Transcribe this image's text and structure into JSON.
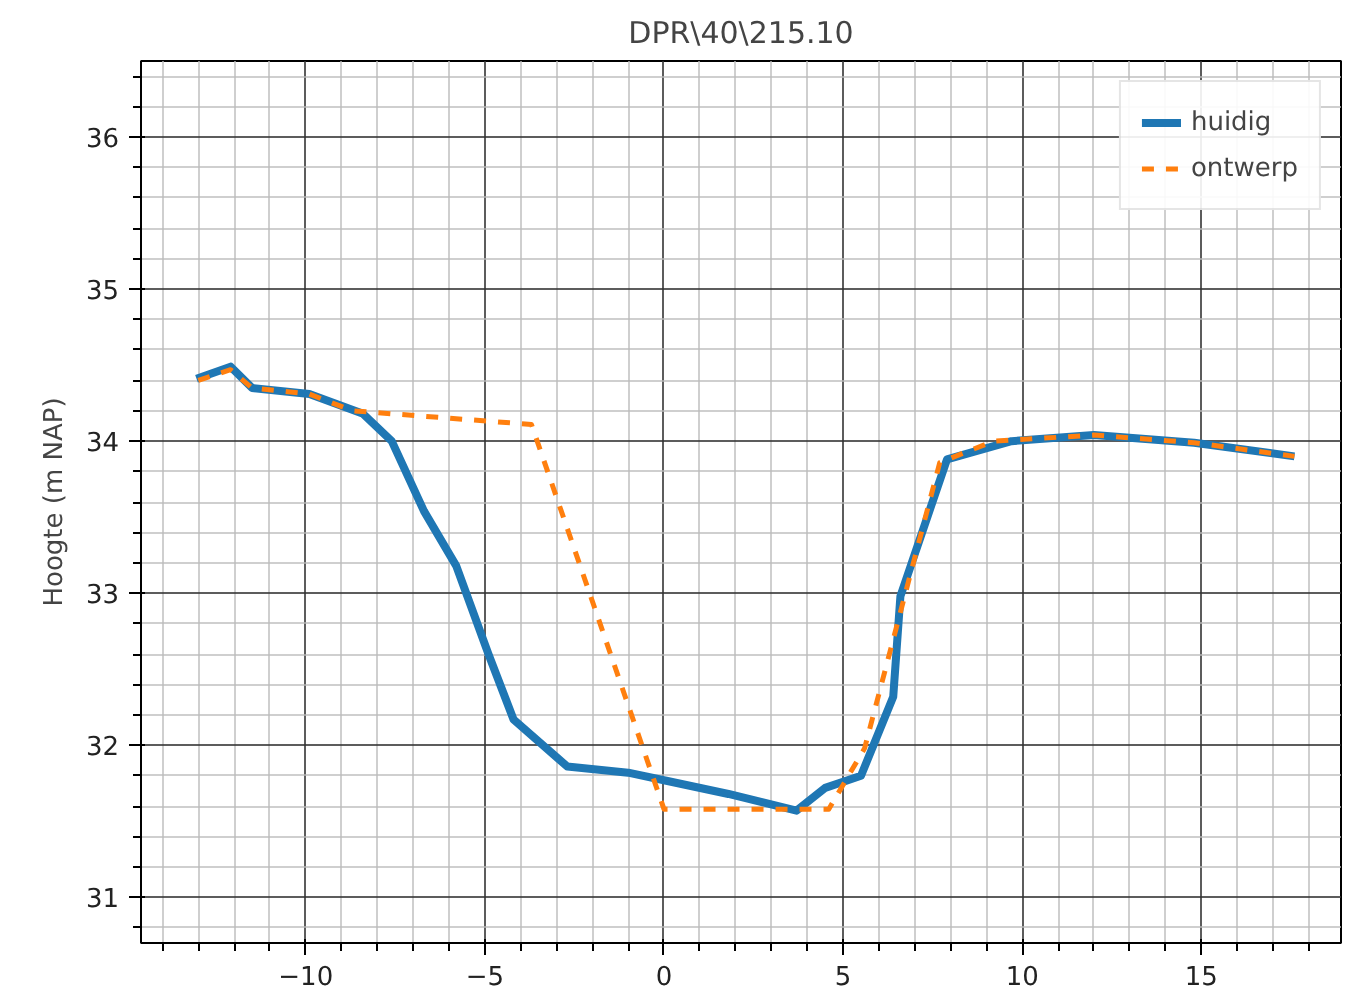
{
  "chart_data": {
    "type": "line",
    "title": "DPR\\40\\215.10",
    "ylabel": "Hoogte (m NAP)",
    "xlim": [
      -14.6,
      18.9
    ],
    "ylim": [
      30.7,
      36.5
    ],
    "xticks": [
      -10,
      -5,
      0,
      5,
      10,
      15
    ],
    "yticks": [
      31,
      32,
      33,
      34,
      35,
      36
    ],
    "grid": true,
    "legend": "top right",
    "series": [
      {
        "name": "huidig",
        "color": "#1f77b4",
        "line_style": "solid",
        "x": [
          -13.05,
          -12.1,
          -11.5,
          -9.9,
          -8.4,
          -7.6,
          -6.7,
          -5.8,
          -4.9,
          -4.2,
          -2.7,
          -1.0,
          0,
          1.8,
          3.7,
          4.5,
          5.5,
          6.4,
          6.6,
          7.9,
          9.7,
          12.0,
          14.8,
          17.6
        ],
        "values": [
          34.41,
          34.49,
          34.35,
          34.31,
          34.18,
          34.0,
          33.54,
          33.18,
          32.6,
          32.17,
          31.86,
          31.82,
          31.77,
          31.68,
          31.57,
          31.72,
          31.8,
          32.32,
          32.98,
          33.88,
          34.0,
          34.04,
          33.99,
          33.9
        ]
      },
      {
        "name": "ontwerp",
        "color": "#ff7f0e",
        "line_style": "dashed",
        "x": [
          -13.0,
          -12.1,
          -11.5,
          -9.9,
          -8.7,
          -3.7,
          0,
          4.6,
          5.6,
          7.7,
          9.2,
          12.0,
          14.8,
          17.6
        ],
        "values": [
          34.4,
          34.47,
          34.35,
          34.31,
          34.2,
          34.11,
          31.58,
          31.58,
          31.98,
          33.86,
          34.0,
          34.04,
          33.99,
          33.9
        ]
      }
    ]
  }
}
